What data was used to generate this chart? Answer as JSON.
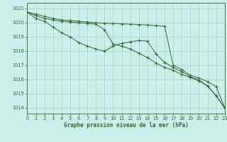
{
  "title": "Graphe pression niveau de la mer (hPa)",
  "background_color": "#cceee8",
  "grid_color": "#aacccc",
  "line_color": "#336633",
  "xlim": [
    0,
    23
  ],
  "ylim": [
    1013.6,
    1021.4
  ],
  "xticks": [
    0,
    1,
    2,
    3,
    4,
    5,
    6,
    7,
    8,
    9,
    10,
    11,
    12,
    13,
    14,
    15,
    16,
    17,
    18,
    19,
    20,
    21,
    22,
    23
  ],
  "yticks": [
    1014,
    1015,
    1016,
    1017,
    1018,
    1019,
    1020,
    1021
  ],
  "series1": [
    1020.75,
    1020.6,
    1020.45,
    1020.3,
    1020.2,
    1020.15,
    1020.1,
    1020.05,
    1020.0,
    1019.97,
    1019.95,
    1019.92,
    1019.9,
    1019.87,
    1019.84,
    1019.8,
    1019.75,
    1017.0,
    1016.7,
    1016.3,
    1016.1,
    1015.85,
    1015.5,
    1014.0
  ],
  "series2": [
    1020.75,
    1020.5,
    1020.3,
    1020.2,
    1020.1,
    1020.05,
    1020.0,
    1019.95,
    1019.9,
    1019.5,
    1018.5,
    1018.35,
    1018.15,
    1017.85,
    1017.55,
    1017.15,
    1016.85,
    1016.65,
    1016.35,
    1016.15,
    1015.9,
    1015.55,
    1014.85,
    1014.0
  ],
  "series3": [
    1020.75,
    1020.3,
    1020.1,
    1019.7,
    1019.3,
    1019.0,
    1018.6,
    1018.35,
    1018.15,
    1018.0,
    1018.35,
    1018.55,
    1018.65,
    1018.75,
    1018.7,
    1017.8,
    1017.2,
    1016.85,
    1016.55,
    1016.2,
    1015.95,
    1015.55,
    1014.85,
    1014.0
  ]
}
